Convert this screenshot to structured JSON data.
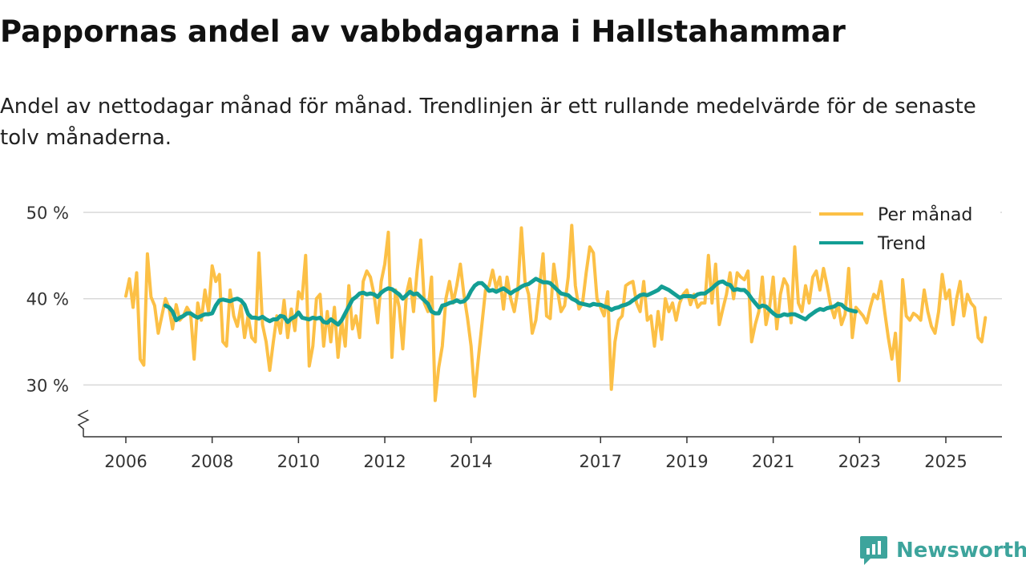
{
  "title": "Pappornas andel av vabbdagarna i Hallstahammar",
  "subtitle": "Andel av nettodagar månad för månad. Trendlinjen är ett rullande medelvärde för de senaste tolv månaderna.",
  "brand": {
    "name": "Newsworthy",
    "icon": "newsworthy-logo-icon"
  },
  "colors": {
    "monthly": "#fcc046",
    "trend": "#139e94",
    "grid": "#d9d9d9",
    "axis": "#333333",
    "brand": "#3da49c"
  },
  "chart_data": {
    "type": "line",
    "title": "Pappornas andel av vabbdagarna i Hallstahammar",
    "xlabel": "",
    "ylabel": "",
    "ylim": [
      24,
      50
    ],
    "yticks": [
      30,
      40,
      50
    ],
    "ytick_labels": [
      "30 %",
      "40 %",
      "50 %"
    ],
    "xticks": [
      2006,
      2008,
      2010,
      2012,
      2014,
      2017,
      2019,
      2021,
      2023,
      2025
    ],
    "xtick_labels": [
      "2006",
      "2008",
      "2010",
      "2012",
      "2014",
      "2017",
      "2019",
      "2021",
      "2023",
      "2025"
    ],
    "legend_position": "top-right",
    "series": [
      {
        "name": "Per månad",
        "x_start": 2006.0,
        "step": 0.08333,
        "values": [
          40.3,
          42.3,
          39,
          43,
          33,
          32.3,
          45.2,
          40.2,
          39.2,
          36,
          38,
          40,
          39,
          36.5,
          39.3,
          37.5,
          38,
          39,
          38.3,
          33,
          39.5,
          37.5,
          41,
          38.5,
          43.8,
          42,
          42.8,
          35,
          34.5,
          41,
          38,
          36.8,
          39.2,
          35.5,
          38,
          35.5,
          35,
          45.3,
          37,
          35,
          31.7,
          35,
          38,
          36,
          39.8,
          35.5,
          38.8,
          36.3,
          40.8,
          40,
          45,
          32.2,
          34.5,
          40,
          40.5,
          34.5,
          38.5,
          35,
          39,
          33.2,
          37.5,
          34.5,
          41.5,
          36.5,
          38,
          35.5,
          42,
          43.2,
          42.5,
          40.5,
          37.2,
          42,
          44,
          47.7,
          33.2,
          41,
          39,
          34.2,
          40.5,
          42.3,
          38.5,
          43.2,
          46.8,
          39.5,
          38.5,
          42.5,
          28.2,
          32,
          34.5,
          40,
          42,
          39.5,
          41.5,
          44,
          40.5,
          37.8,
          34.5,
          28.7,
          33,
          37,
          41,
          41.5,
          43.3,
          41.2,
          42.5,
          38.8,
          42.5,
          40,
          38.5,
          41,
          48.2,
          42,
          40.5,
          36,
          37.5,
          41.2,
          45.2,
          38,
          37.7,
          44,
          41,
          38.5,
          39.2,
          42.5,
          48.5,
          41.5,
          38.8,
          39.5,
          43,
          46,
          45.3,
          40,
          39,
          38,
          40.8,
          29.5,
          35,
          37.5,
          38,
          41.5,
          41.8,
          42,
          39.5,
          38.5,
          42,
          37.5,
          38,
          34.5,
          38.5,
          35.3,
          40,
          38.5,
          39.5,
          37.5,
          39.5,
          40.5,
          41,
          39.3,
          40.5,
          39,
          39.5,
          39.5,
          45,
          39.5,
          44,
          37,
          38.8,
          40.5,
          43,
          40,
          43,
          42.5,
          42.2,
          43.2,
          35,
          37,
          38.5,
          42.5,
          37,
          39,
          42.5,
          36.5,
          40.5,
          42.3,
          41.5,
          37.2,
          46,
          39.5,
          38.5,
          41.5,
          39.5,
          42.5,
          43.2,
          41,
          43.5,
          41.5,
          39.2,
          37.8,
          39.5,
          37,
          38.2,
          43.5,
          35.5,
          39,
          38.5,
          38,
          37.2,
          39,
          40.5,
          40,
          42,
          38.5,
          35.5,
          33,
          36,
          30.5,
          42.2,
          38,
          37.5,
          38.3,
          38,
          37.5,
          41,
          38.5,
          36.8,
          36,
          38.5,
          42.8,
          40,
          41,
          37,
          40,
          42,
          38,
          40.5,
          39.5,
          39,
          35.5,
          35,
          37.8
        ]
      },
      {
        "name": "Trend",
        "x_start": 2006.917,
        "step": 0.08333,
        "values": [
          39.2,
          39,
          38.5,
          37.5,
          37.8,
          38,
          38.3,
          38.3,
          38,
          37.8,
          38,
          38.2,
          38.2,
          38.3,
          39.2,
          39.8,
          39.9,
          39.8,
          39.7,
          39.9,
          40,
          39.8,
          39.3,
          38.2,
          37.8,
          37.8,
          37.7,
          37.9,
          37.6,
          37.4,
          37.6,
          37.6,
          38,
          37.9,
          37.3,
          37.7,
          37.9,
          38.4,
          37.8,
          37.7,
          37.6,
          37.8,
          37.7,
          37.8,
          37.3,
          37.2,
          37.6,
          37.3,
          37,
          37.5,
          38.3,
          39.1,
          39.9,
          40.2,
          40.6,
          40.7,
          40.5,
          40.6,
          40.5,
          40.2,
          40.7,
          41,
          41.2,
          41.1,
          40.8,
          40.5,
          40,
          40.4,
          40.8,
          40.5,
          40.6,
          40.2,
          39.8,
          39.4,
          38.5,
          38.3,
          38.3,
          39.2,
          39.3,
          39.5,
          39.6,
          39.8,
          39.6,
          39.7,
          40.1,
          40.9,
          41.5,
          41.8,
          41.8,
          41.4,
          40.9,
          41,
          40.8,
          41,
          41.2,
          40.9,
          40.6,
          40.9,
          41.1,
          41.4,
          41.6,
          41.7,
          42,
          42.3,
          42.1,
          41.9,
          41.9,
          41.8,
          41.4,
          41,
          40.6,
          40.5,
          40.4,
          40,
          39.8,
          39.5,
          39.4,
          39.3,
          39.2,
          39.4,
          39.3,
          39.3,
          39.1,
          39,
          38.7,
          38.9,
          39,
          39.2,
          39.3,
          39.5,
          39.8,
          40.1,
          40.4,
          40.5,
          40.4,
          40.6,
          40.8,
          41,
          41.4,
          41.2,
          41,
          40.7,
          40.4,
          40.1,
          40.3,
          40.3,
          40.3,
          40.2,
          40.5,
          40.6,
          40.6,
          40.9,
          41.2,
          41.6,
          41.9,
          42,
          41.7,
          41.6,
          41,
          41.1,
          41,
          41,
          40.6,
          40,
          39.5,
          39,
          39.2,
          39.1,
          38.7,
          38.3,
          38,
          38,
          38.2,
          38.1,
          38.2,
          38.2,
          38,
          37.8,
          37.6,
          38,
          38.3,
          38.6,
          38.8,
          38.7,
          38.9,
          39,
          39.1,
          39.4,
          39.3,
          38.9,
          38.7,
          38.6,
          38.5
        ]
      }
    ]
  }
}
